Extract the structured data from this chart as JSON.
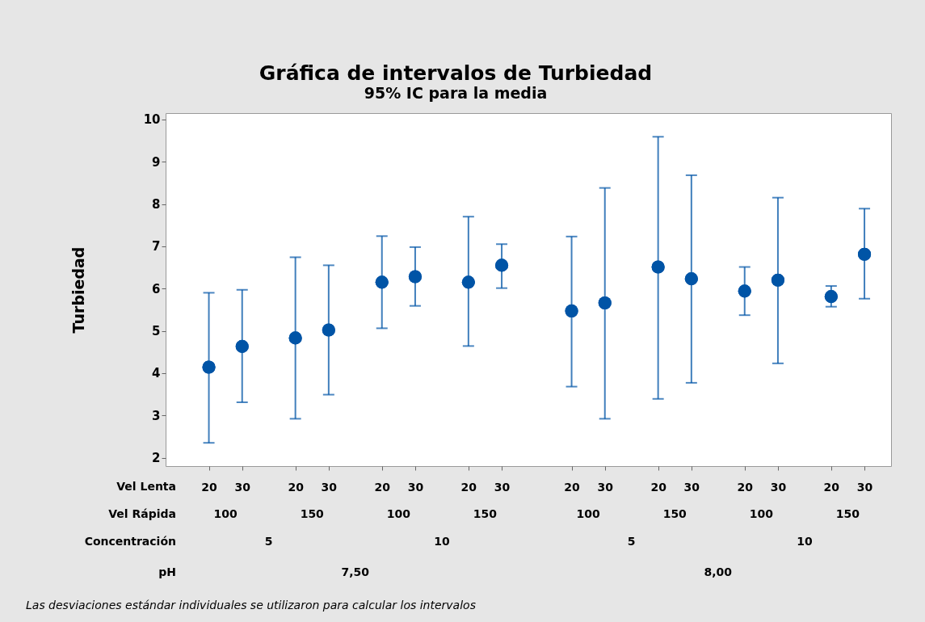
{
  "chart_data": {
    "type": "scatter",
    "title": "Gráfica de intervalos de Turbiedad",
    "subtitle": "95% IC para la media",
    "ylabel": "Turbiedad",
    "categories": [
      "20",
      "30",
      "20",
      "30",
      "20",
      "30",
      "20",
      "30",
      "20",
      "30",
      "20",
      "30",
      "20",
      "30",
      "20",
      "30"
    ],
    "series": [
      {
        "color": "#0054a6",
        "values": [
          4.14,
          4.63,
          4.83,
          5.02,
          6.15,
          6.28,
          6.15,
          6.55,
          5.47,
          5.66,
          6.51,
          6.23,
          5.94,
          6.2,
          5.81,
          6.81
        ],
        "errors": [
          [
            2.35,
            5.9
          ],
          [
            3.31,
            5.97
          ],
          [
            2.92,
            6.74
          ],
          [
            3.49,
            6.55
          ],
          [
            5.06,
            7.24
          ],
          [
            5.59,
            6.98
          ],
          [
            4.64,
            7.7
          ],
          [
            6.01,
            7.05
          ],
          [
            3.68,
            7.23
          ],
          [
            2.92,
            8.38
          ],
          [
            3.39,
            9.59
          ],
          [
            3.77,
            8.68
          ],
          [
            5.37,
            6.51
          ],
          [
            4.23,
            8.15
          ],
          [
            5.57,
            6.06
          ],
          [
            5.76,
            7.89
          ]
        ]
      }
    ],
    "ylim": [
      1.8,
      10.15
    ],
    "yticks": [
      2,
      3,
      4,
      5,
      6,
      7,
      8,
      9,
      10
    ],
    "grid": false,
    "marker": "circle",
    "annotations": [
      "Vel Lenta",
      "Vel Rápida",
      "Concentración",
      "pH",
      "100",
      "150",
      "100",
      "150",
      "100",
      "150",
      "100",
      "150",
      "5",
      "10",
      "5",
      "10",
      "7,50",
      "8,00",
      "Las desviaciones estándar individuales se utilizaron para calcular los intervalos"
    ]
  }
}
